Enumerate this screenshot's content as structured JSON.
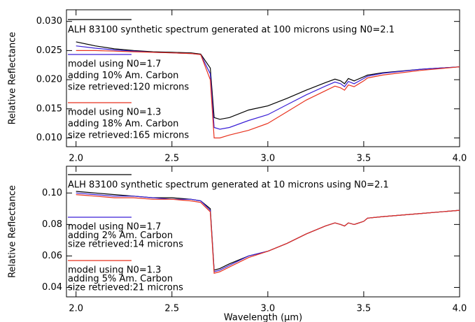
{
  "chart_data": [
    {
      "type": "line",
      "ylabel": "Relative Reflectance",
      "x": [
        2.0,
        2.1,
        2.2,
        2.3,
        2.4,
        2.5,
        2.6,
        2.65,
        2.7,
        2.72,
        2.75,
        2.8,
        2.9,
        3.0,
        3.1,
        3.2,
        3.3,
        3.35,
        3.38,
        3.4,
        3.42,
        3.45,
        3.5,
        3.52,
        3.6,
        3.8,
        4.0
      ],
      "xlim": [
        1.95,
        4.0
      ],
      "xticks": [
        {
          "value": 2,
          "label": "2.0"
        },
        2.5,
        {
          "value": 3,
          "label": "3.0"
        },
        3.5,
        {
          "value": 4,
          "label": "4.0"
        }
      ],
      "ylim": [
        0.0085,
        0.032
      ],
      "yticks": [
        {
          "value": 0.01,
          "label": "0.010"
        },
        0.015,
        {
          "value": 0.02,
          "label": "0.020"
        },
        0.025,
        {
          "value": 0.03,
          "label": "0.030"
        }
      ],
      "series": [
        {
          "name": [
            "ALH 83100 synthetic spectrum generated at 100 microns using N0=2.1"
          ],
          "color": "#000000",
          "values": [
            0.0265,
            0.0258,
            0.0253,
            0.025,
            0.0248,
            0.0247,
            0.0246,
            0.0244,
            0.022,
            0.0135,
            0.0132,
            0.0135,
            0.0148,
            0.0155,
            0.0168,
            0.0182,
            0.0195,
            0.0201,
            0.0198,
            0.0193,
            0.0202,
            0.0198,
            0.0205,
            0.0208,
            0.0212,
            0.0218,
            0.0222
          ]
        },
        {
          "name": [
            "model using N0=1.7",
            "adding 10% Am. Carbon",
            "size retrieved:120 microns"
          ],
          "color": "#3a1fd6",
          "values": [
            0.0258,
            0.0254,
            0.0251,
            0.0249,
            0.0247,
            0.0246,
            0.0245,
            0.0243,
            0.021,
            0.0118,
            0.0115,
            0.0118,
            0.013,
            0.014,
            0.0157,
            0.0174,
            0.0189,
            0.0196,
            0.0193,
            0.0188,
            0.0197,
            0.0193,
            0.0202,
            0.0206,
            0.0211,
            0.0218,
            0.0222
          ]
        },
        {
          "name": [
            "model using N0=1.3",
            "adding 18% Am. Carbon",
            "size retrieved:165 microns"
          ],
          "color": "#e8321e",
          "values": [
            0.025,
            0.025,
            0.0249,
            0.0248,
            0.0247,
            0.0246,
            0.0245,
            0.0243,
            0.02,
            0.01,
            0.01,
            0.0105,
            0.0113,
            0.0125,
            0.0145,
            0.0165,
            0.0181,
            0.0189,
            0.0186,
            0.0182,
            0.0191,
            0.0188,
            0.0198,
            0.0203,
            0.0208,
            0.0216,
            0.0222
          ]
        }
      ]
    },
    {
      "type": "line",
      "ylabel": "Relative Reflectance",
      "xlabel": "Wavelength (μm)",
      "x": [
        2.0,
        2.1,
        2.2,
        2.3,
        2.4,
        2.5,
        2.6,
        2.65,
        2.7,
        2.72,
        2.75,
        2.8,
        2.9,
        3.0,
        3.1,
        3.2,
        3.3,
        3.35,
        3.38,
        3.4,
        3.42,
        3.45,
        3.5,
        3.52,
        3.6,
        3.8,
        4.0
      ],
      "xlim": [
        1.95,
        4.0
      ],
      "xticks": [
        {
          "value": 2,
          "label": "2.0"
        },
        2.5,
        {
          "value": 3,
          "label": "3.0"
        },
        3.5,
        {
          "value": 4,
          "label": "4.0"
        }
      ],
      "ylim": [
        0.034,
        0.117
      ],
      "yticks": [
        0.04,
        0.06,
        0.08,
        {
          "value": 0.1,
          "label": "0.10"
        }
      ],
      "series": [
        {
          "name": [
            "ALH 83100 synthetic spectrum generated at 10 microns using N0=2.1"
          ],
          "color": "#000000",
          "values": [
            0.101,
            0.1,
            0.099,
            0.098,
            0.097,
            0.097,
            0.096,
            0.095,
            0.09,
            0.051,
            0.052,
            0.055,
            0.06,
            0.063,
            0.068,
            0.074,
            0.079,
            0.081,
            0.08,
            0.079,
            0.081,
            0.08,
            0.082,
            0.084,
            0.085,
            0.087,
            0.089
          ]
        },
        {
          "name": [
            "model using N0=1.7",
            "adding 2% Am. Carbon",
            "size retrieved:14 microns"
          ],
          "color": "#3a1fd6",
          "values": [
            0.1,
            0.099,
            0.098,
            0.098,
            0.097,
            0.096,
            0.096,
            0.095,
            0.089,
            0.05,
            0.051,
            0.054,
            0.06,
            0.063,
            0.068,
            0.074,
            0.079,
            0.081,
            0.08,
            0.079,
            0.081,
            0.08,
            0.082,
            0.084,
            0.085,
            0.087,
            0.089
          ]
        },
        {
          "name": [
            "model using N0=1.3",
            "adding 5% Am. Carbon",
            "size retrieved:21 microns"
          ],
          "color": "#e8321e",
          "values": [
            0.099,
            0.098,
            0.097,
            0.097,
            0.096,
            0.096,
            0.095,
            0.094,
            0.088,
            0.049,
            0.05,
            0.053,
            0.059,
            0.063,
            0.068,
            0.074,
            0.079,
            0.081,
            0.08,
            0.079,
            0.081,
            0.08,
            0.082,
            0.084,
            0.085,
            0.087,
            0.089
          ]
        }
      ]
    }
  ]
}
